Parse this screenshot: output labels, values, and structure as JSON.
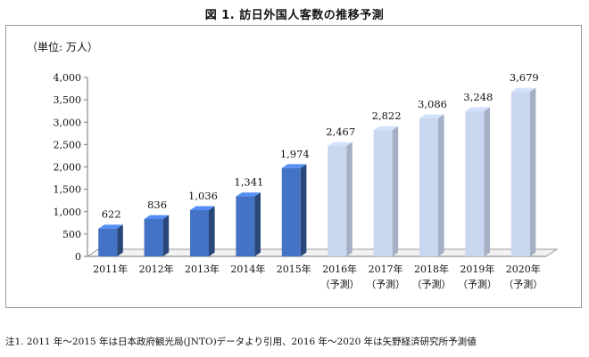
{
  "title": "図 1. 訪日外国人客数の推移予測",
  "unit_label": "（単位: 万人）",
  "note": "注1. 2011 年〜2015 年は日本政府観光局(JNTO)データより引用、2016 年〜2020 年は矢野経済研究所予測値",
  "colors": {
    "actual": "#4472c4",
    "forecast": "#c9d7f0"
  },
  "chart_data": {
    "type": "bar",
    "title": "図 1. 訪日外国人客数の推移予測",
    "ylabel": "（単位: 万人）",
    "ylim": [
      0,
      4000
    ],
    "yticks": [
      "0",
      "500",
      "1,000",
      "1,500",
      "2,000",
      "2,500",
      "3,000",
      "3,500",
      "4,000"
    ],
    "categories": [
      "2011年",
      "2012年",
      "2013年",
      "2014年",
      "2015年",
      "2016年",
      "2017年",
      "2018年",
      "2019年",
      "2020年"
    ],
    "category_sublabels": [
      "",
      "",
      "",
      "",
      "",
      "（予測）",
      "（予測）",
      "（予測）",
      "（予測）",
      "（予測）"
    ],
    "values": [
      622,
      836,
      1036,
      1341,
      1974,
      2467,
      2822,
      3086,
      3248,
      3679
    ],
    "value_labels": [
      "622",
      "836",
      "1,036",
      "1,341",
      "1,974",
      "2,467",
      "2,822",
      "3,086",
      "3,248",
      "3,679"
    ],
    "forecast_from_index": 5,
    "grid": false,
    "legend": "none"
  }
}
